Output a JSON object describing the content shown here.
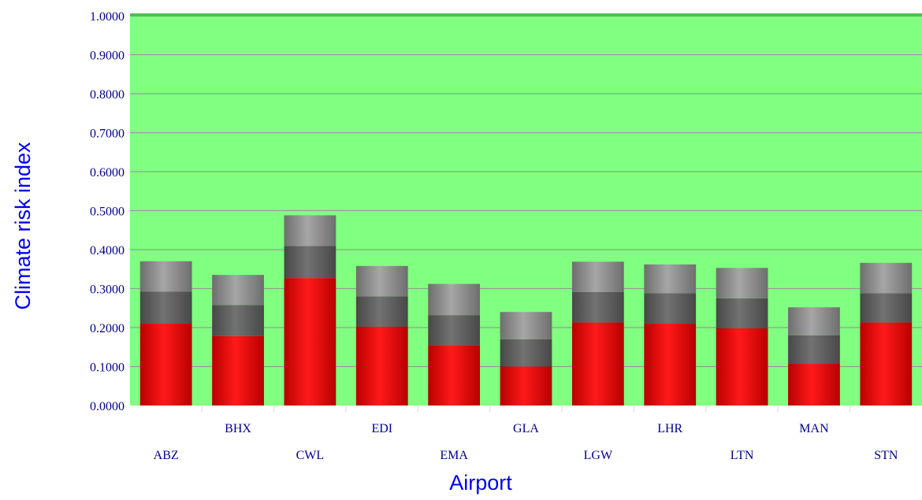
{
  "chart_data": {
    "type": "bar",
    "stacked": true,
    "xlabel": "Airport",
    "ylabel": "Climate risk index",
    "ylim": [
      0,
      1
    ],
    "y_ticks": [
      "0.0000",
      "0.1000",
      "0.2000",
      "0.3000",
      "0.4000",
      "0.5000",
      "0.6000",
      "0.7000",
      "0.8000",
      "0.9000",
      "1.0000"
    ],
    "categories": [
      "ABZ",
      "BHX",
      "CWL",
      "EDI",
      "EMA",
      "GLA",
      "LGW",
      "LHR",
      "LTN",
      "MAN",
      "STN"
    ],
    "series": [
      {
        "values": [
          0.21,
          0.178,
          0.327,
          0.202,
          0.155,
          0.1,
          0.213,
          0.21,
          0.198,
          0.107,
          0.213
        ]
      },
      {
        "values": [
          0.082,
          0.08,
          0.082,
          0.078,
          0.077,
          0.07,
          0.078,
          0.078,
          0.077,
          0.073,
          0.075
        ]
      },
      {
        "values": [
          0.078,
          0.077,
          0.079,
          0.078,
          0.08,
          0.07,
          0.078,
          0.074,
          0.078,
          0.072,
          0.078
        ]
      }
    ],
    "grid": true,
    "colors": {
      "plot_background": "#80ff80",
      "gridline": "#9a9a9a",
      "segment_colors": [
        "#e00000",
        "#5e5e5e",
        "#8a8a8a"
      ],
      "tick_label": "#00008b",
      "axis_title": "#0000ee"
    }
  }
}
